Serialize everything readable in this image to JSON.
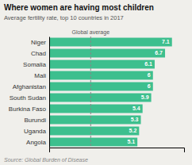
{
  "chart_data": {
    "type": "bar",
    "orientation": "horizontal",
    "title": "Where women are having most children",
    "subtitle": "Average fertility rate, top 10 countries in 2017",
    "source": "Source: Global Burden of Disease",
    "annotations": [
      {
        "text": "Global average",
        "x": 2.4
      }
    ],
    "categories": [
      "Niger",
      "Chad",
      "Somalia",
      "Mali",
      "Afghanistan",
      "South Sudan",
      "Burkina Faso",
      "Burundi",
      "Uganda",
      "Angola"
    ],
    "values": [
      7.1,
      6.7,
      6.1,
      6.0,
      6.0,
      5.9,
      5.4,
      5.3,
      5.2,
      5.1
    ],
    "color": "#3dbf8e",
    "xlim": [
      0,
      7.8
    ],
    "xticks": [],
    "grid": false,
    "data_labels": true,
    "tick_labels": "y"
  }
}
